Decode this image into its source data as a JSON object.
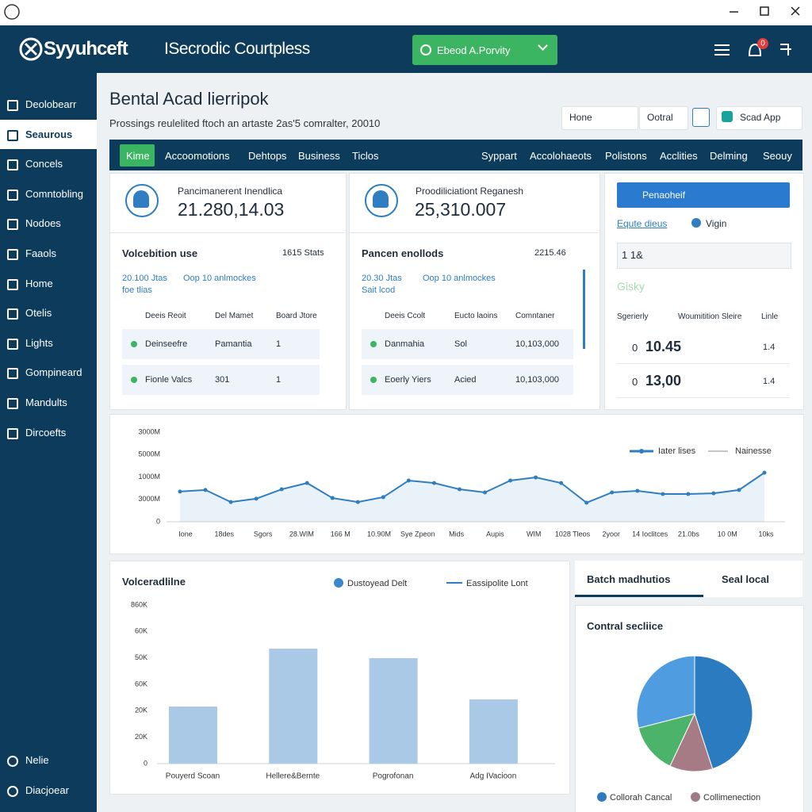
{
  "header": {
    "logo": "Syyuhceft",
    "app_title": "ISecrodic Courtpless",
    "search": "Ebeod A.Porvity",
    "badge": "0"
  },
  "sidebar": {
    "items": [
      "Deolobearr",
      "Seaurous",
      "Concels",
      "Comntobling",
      "Nodoes",
      "Faaols",
      "Home",
      "Otelis",
      "Lights",
      "Gompineard",
      "Mandults",
      "Dircoefts"
    ],
    "active": 1,
    "bottom": [
      "Nelie",
      "Diacjoear"
    ]
  },
  "page": {
    "title": "Bental Acad lierripok",
    "subtitle": "Prossings reulelited ftoch an artaste 2as'5 comralter, 20010",
    "buttons": [
      "Hone",
      "Ootral",
      "Scad App"
    ]
  },
  "nav": {
    "items": [
      "Kime",
      "Accoomotions",
      "Dehtops",
      "Business",
      "Ticlos",
      "Syppart",
      "Accolohaeots",
      "Polistons",
      "Acclities",
      "Delming",
      "Seouy"
    ],
    "active": 0
  },
  "cards": [
    {
      "stat_label": "Pancimanerent Inendlica",
      "stat_value": "21.280,14.03",
      "section_title": "Volcebition use",
      "filter": "1615 Stats",
      "link_a": "20.100 Jtas",
      "link_b": "Oop 10 anlmockes",
      "link_c": "foe tlias",
      "columns": [
        "Deeis Reoit",
        "Del Mamet",
        "Board Jtore"
      ],
      "rows": [
        [
          "Deinseefre",
          "Pamantia",
          "1"
        ],
        [
          "Fionle Valcs",
          "301",
          "1"
        ]
      ]
    },
    {
      "stat_label": "Proodiliciationt Reganesh",
      "stat_value": "25,310.007",
      "section_title": "Pancen enollods",
      "filter": "2215.46",
      "link_a": "20.30 Jtas",
      "link_b": "Oop 10 anlmockes",
      "link_c": "Sait lcod",
      "columns": [
        "Deeis Ccolt",
        "Eucto laoins",
        "Comntaner"
      ],
      "rows": [
        [
          "Danmahia",
          "Sol",
          "10,103,000"
        ],
        [
          "Eoerly Yiers",
          "Acied",
          "10,103,000"
        ]
      ]
    }
  ],
  "side_panel": {
    "dropdown": "Penaoheif",
    "filter": "Equte dieus",
    "option": "Vigin",
    "input": "1 1&",
    "tag": "Gisky",
    "columns": [
      "Sgerierly",
      "Woumitition Sleire",
      "Linle"
    ],
    "rows": [
      [
        "0",
        "10.45",
        "1.4"
      ],
      [
        "0",
        "13,00",
        "1.4"
      ]
    ]
  },
  "line_chart": {
    "type": "line",
    "y_labels": [
      "3000M",
      "5000M",
      "1000M",
      "3000M",
      "0"
    ],
    "x_labels": [
      "Ione",
      "18des",
      "Sgors",
      "28.WIM",
      "166 M",
      "10.90M",
      "Sye Zpeon",
      "Mids",
      "Aupis",
      "WIM",
      "1028 Tleos",
      "2yoor",
      "14 Ioclitces",
      "21.0bs",
      "10 0M",
      "10ks"
    ],
    "ylim": [
      0,
      4
    ],
    "color": "#2f7ec1",
    "values": [
      1.35,
      1.42,
      0.88,
      1.03,
      1.45,
      1.73,
      1.06,
      0.88,
      1.1,
      1.84,
      1.73,
      1.45,
      1.31,
      1.84,
      1.98,
      1.73,
      0.85,
      1.31,
      1.38,
      1.24,
      1.24,
      1.27,
      1.42,
      2.19
    ],
    "legend": [
      {
        "name": "Iater lises",
        "color": "#2f7ec1"
      },
      {
        "name": "Nainesse",
        "color": "#8a8f96"
      }
    ]
  },
  "bar_chart": {
    "type": "bar",
    "title": "Volceradlilne",
    "legend": [
      {
        "name": "Dustoyead Delt",
        "color": "#3b86cc"
      },
      {
        "name": "Eassipolite Lont",
        "color": "#2f7ec1"
      }
    ],
    "y_labels": [
      "860K",
      "60K",
      "50K",
      "60K",
      "20K",
      "20K",
      "0"
    ],
    "categories": [
      "Pouyerd Scoan",
      "Hellere&Bernte",
      "Pogrofonan",
      "Adg IVacioon"
    ],
    "values": [
      2.16,
      4.35,
      3.99,
      2.43
    ],
    "ylim": [
      0,
      6
    ],
    "color": "#a9c9e6"
  },
  "right_panel": {
    "tabs": [
      "Batch madhutios",
      "Seal local"
    ],
    "title": "Contral secliice",
    "pie": {
      "type": "pie",
      "values": [
        45,
        12,
        14,
        29
      ],
      "colors": [
        "#2a7bbf",
        "#a77b86",
        "#4cb36a",
        "#4f9de0"
      ]
    },
    "legend": [
      {
        "name": "Collorah Cancal",
        "color": "#2e7bbf"
      },
      {
        "name": "Collimenection",
        "color": "#a07a85"
      }
    ]
  }
}
